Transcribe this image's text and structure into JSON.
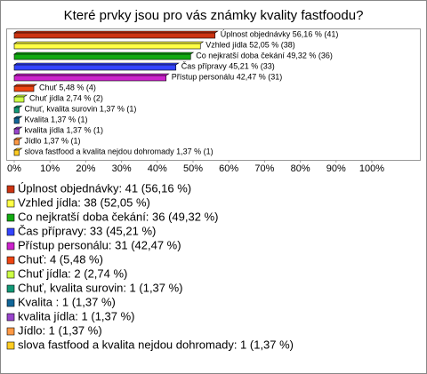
{
  "chart_data": {
    "type": "hbar",
    "title": "Které prvky jsou pro vás známky kvality fastfoodu?",
    "categories": [
      "Úplnost objednávky",
      "Vzhled jídla",
      "Co nejkratší doba čekání",
      "Čas přípravy",
      "Přístup personálu",
      "Chuť",
      "Chuť jídla",
      "Chuť, kvalita surovin",
      "Kvalita",
      "kvalita jídla",
      "Jídlo",
      "slova fastfood a kvalita nejdou dohromady"
    ],
    "values": [
      56.16,
      52.05,
      49.32,
      45.21,
      42.47,
      5.48,
      2.74,
      1.37,
      1.37,
      1.37,
      1.37,
      1.37
    ],
    "value_labels": [
      "Úplnost objednávky 56,16 % (41)",
      "Vzhled jídla 52,05 % (38)",
      "Co nejkratší doba čekání 49,32 % (36)",
      "Čas přípravy 45,21 % (33)",
      "Přístup personálu 42,47 % (31)",
      "Chuť  5,48 % (4)",
      "Chuť jídla 2,74 % (2)",
      "Chuť, kvalita surovin 1,37 % (1)",
      "Kvalita  1,37 % (1)",
      "kvalita jídla 1,37 % (1)",
      "Jídlo 1,37 % (1)",
      "slova fastfood a kvalita nejdou dohromady 1,37 % (1)"
    ],
    "legend_labels": [
      "Úplnost objednávky: 41 (56,16 %)",
      "Vzhled jídla: 38 (52,05 %)",
      "Co nejkratší doba čekání: 36 (49,32 %)",
      "Čas přípravy: 33 (45,21 %)",
      "Přístup personálu: 31 (42,47 %)",
      "Chuť: 4 (5,48 %)",
      "Chuť jídla: 2 (2,74 %)",
      "Chuť, kvalita surovin: 1 (1,37 %)",
      "Kvalita : 1 (1,37 %)",
      "kvalita jídla: 1 (1,37 %)",
      "Jídlo: 1 (1,37 %)",
      "slova fastfood a kvalita nejdou dohromady: 1 (1,37 %)"
    ],
    "colors": [
      "#cc3311",
      "#ffff44",
      "#11aa11",
      "#3344ff",
      "#cc22cc",
      "#ee4411",
      "#ccff44",
      "#119977",
      "#116699",
      "#9944cc",
      "#ff9944",
      "#ffcc22"
    ],
    "xlim": [
      0,
      100
    ],
    "xticks": [
      {
        "value": 0,
        "label": "0%"
      },
      {
        "value": 10,
        "label": "10%"
      },
      {
        "value": 20,
        "label": "20%"
      },
      {
        "value": 30,
        "label": "30%"
      },
      {
        "value": 40,
        "label": "40%"
      },
      {
        "value": 50,
        "label": "50%"
      },
      {
        "value": 60,
        "label": "60%"
      },
      {
        "value": 70,
        "label": "70%"
      },
      {
        "value": 80,
        "label": "80%"
      },
      {
        "value": 90,
        "label": "90%"
      },
      {
        "value": 100,
        "label": "100%"
      }
    ]
  }
}
